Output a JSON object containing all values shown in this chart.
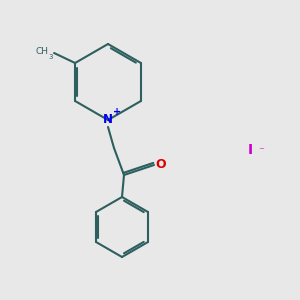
{
  "background_color": "#e8e8e8",
  "bond_color": "#2d5f5f",
  "n_color": "#0000ee",
  "o_color": "#dd0000",
  "i_color": "#cc00cc",
  "line_width": 1.5,
  "figsize": [
    3.0,
    3.0
  ],
  "dpi": 100,
  "xlim": [
    0,
    3.0
  ],
  "ylim": [
    0,
    3.0
  ]
}
